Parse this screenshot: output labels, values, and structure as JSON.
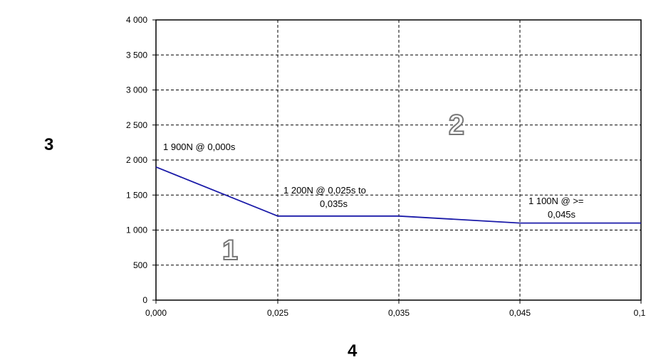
{
  "chart_data": {
    "type": "line",
    "x_tick_labels": [
      "0,000",
      "0,025",
      "0,035",
      "0,045",
      "0,1"
    ],
    "y_tick_labels": [
      "0",
      "500",
      "1 000",
      "1 500",
      "2 000",
      "2 500",
      "3 000",
      "3 500",
      "4 000"
    ],
    "y_ticks": [
      0,
      500,
      1000,
      1500,
      2000,
      2500,
      3000,
      3500,
      4000
    ],
    "ylim": [
      0,
      4000
    ],
    "grid": true,
    "grid_style": "dashed",
    "series": [
      {
        "color": "#1a1aa8",
        "points": [
          {
            "x": 0.0,
            "y": 1900
          },
          {
            "x": 0.025,
            "y": 1200
          },
          {
            "x": 0.035,
            "y": 1200
          },
          {
            "x": 0.045,
            "y": 1100
          },
          {
            "x": 0.1,
            "y": 1100
          }
        ]
      }
    ],
    "annotations": [
      {
        "lines": [
          "1 900N @ 0,000s"
        ]
      },
      {
        "lines": [
          "1 200N @ 0,025s to",
          "0,035s"
        ]
      },
      {
        "lines": [
          "1 100N @ >=",
          "0,045s"
        ]
      }
    ],
    "region_labels": [
      "1",
      "2"
    ],
    "outer_labels": {
      "y_side": "3",
      "x_side": "4"
    }
  }
}
